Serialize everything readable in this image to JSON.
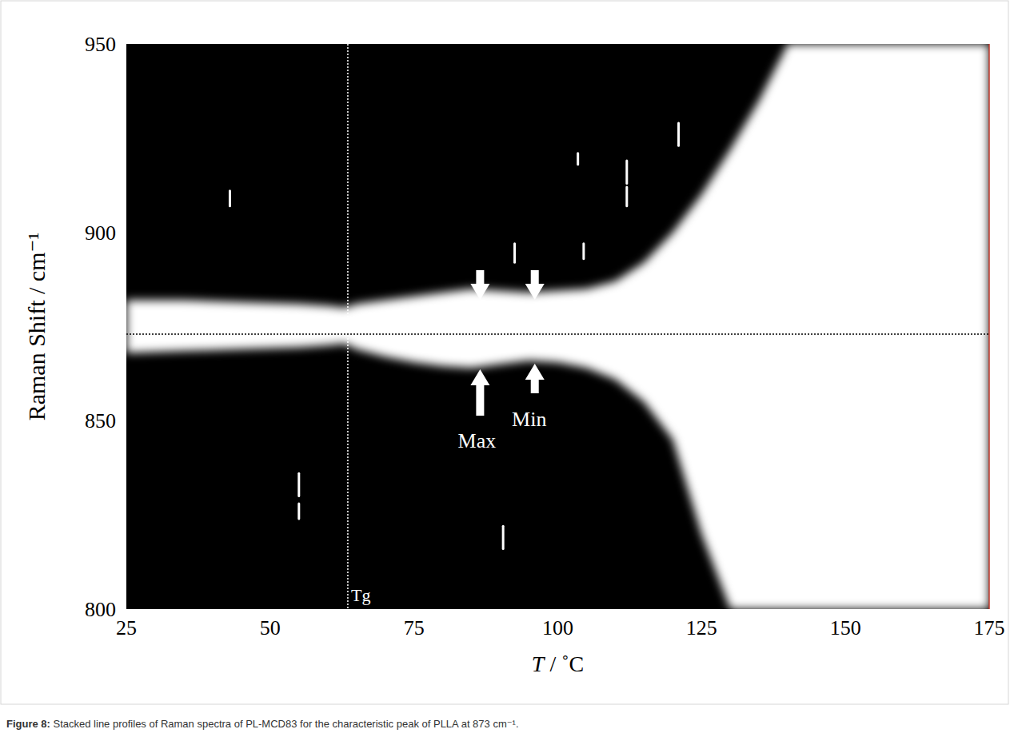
{
  "chart_data": {
    "type": "area",
    "x_label": "T / ˚C",
    "y_label": "Raman Shift / cm⁻¹",
    "caption": "Figure 8: Stacked line profiles of Raman spectra of PL-MCD83 for the characteristic peak of PLLA at 873 cm⁻¹.",
    "xlim": [
      25,
      175
    ],
    "ylim": [
      800,
      950
    ],
    "xticks": [
      25,
      50,
      75,
      100,
      125,
      150,
      175
    ],
    "yticks": [
      800,
      850,
      900,
      950
    ],
    "grid": false,
    "x": [
      25,
      35,
      45,
      55,
      60,
      63,
      65,
      70,
      75,
      80,
      85,
      90,
      95,
      100,
      105,
      110,
      115,
      120,
      125,
      130,
      135,
      140,
      145,
      150,
      175
    ],
    "series": [
      {
        "color": "#ffffff",
        "values": [
          882,
          882,
          881.5,
          881,
          880.5,
          880,
          881,
          882,
          883,
          884,
          885,
          884.5,
          884,
          884.5,
          885,
          887,
          892,
          900,
          910,
          922,
          935,
          950,
          950,
          950,
          950
        ],
        "base": [
          868,
          868.5,
          869,
          869.5,
          870,
          870.5,
          869,
          867,
          865.5,
          864.5,
          864,
          865,
          866,
          865.5,
          864,
          861,
          855,
          845,
          820,
          800,
          800,
          800,
          800,
          800,
          800
        ]
      }
    ],
    "reference_y": 873,
    "tg": {
      "label": "Tg",
      "x": 63.5
    },
    "markers": [
      {
        "label": "Max",
        "x": 86.5
      },
      {
        "label": "Min",
        "x": 96
      }
    ],
    "spikes": {
      "x": [
        43,
        55,
        55,
        90.5,
        92.5,
        103.5,
        104.5,
        112,
        112,
        121
      ],
      "low": [
        907,
        830,
        824,
        816,
        892,
        918,
        893,
        907,
        913,
        923
      ],
      "high": [
        911,
        836,
        828,
        822,
        897,
        921,
        897,
        912,
        919,
        929
      ]
    }
  }
}
